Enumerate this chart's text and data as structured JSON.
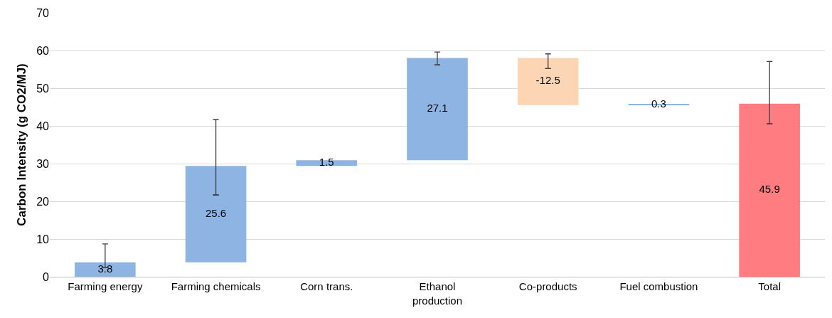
{
  "chart_data": {
    "type": "bar",
    "ylabel": "Carbon Intensity (g CO2/MJ)",
    "categories": [
      "Farming energy",
      "Farming chemicals",
      "Corn trans.",
      "Ethanol\nproduction",
      "Co-products",
      "Fuel combustion",
      "Total"
    ],
    "values": [
      3.8,
      25.6,
      1.5,
      27.1,
      -12.5,
      0.3,
      45.9
    ],
    "base": [
      0,
      3.8,
      29.4,
      30.9,
      58.0,
      45.5,
      0
    ],
    "colors": [
      "#8eb4e3",
      "#8eb4e3",
      "#8eb4e3",
      "#8eb4e3",
      "#fcd5b5",
      "#8eb4e3",
      "#ff7c80"
    ],
    "errors": [
      [
        2.5,
        8.7
      ],
      [
        21.7,
        41.7
      ],
      null,
      [
        56.2,
        59.6
      ],
      [
        55.2,
        59.1
      ],
      null,
      [
        40.6,
        57.1
      ]
    ],
    "data_labels": true,
    "ylim": [
      0,
      70
    ],
    "yticks": [
      0,
      10,
      20,
      30,
      40,
      50,
      60,
      70
    ],
    "grid": "y"
  }
}
